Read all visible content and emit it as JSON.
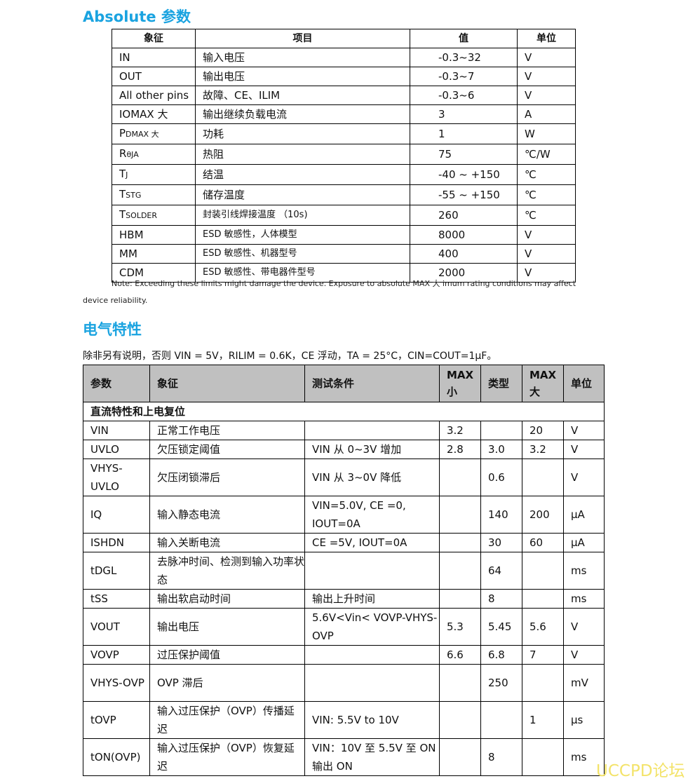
{
  "abs": {
    "title": "Absolute 参数",
    "headers": [
      "象征",
      "项目",
      "值",
      "单位"
    ],
    "rows": [
      {
        "sym": "IN",
        "sub": "",
        "item": "输入电压",
        "val": "-0.3~32",
        "unit": "V"
      },
      {
        "sym": "OUT",
        "sub": "",
        "item": "输出电压",
        "val": "-0.3~7",
        "unit": "V"
      },
      {
        "sym": "All other pins",
        "sub": "",
        "item": "故障、CE、ILIM",
        "val": "-0.3~6",
        "unit": "V"
      },
      {
        "sym": "IOMAX 大",
        "sub": "",
        "item": "输出继续负载电流",
        "val": "3",
        "unit": "A"
      },
      {
        "sym": "P",
        "sub": "DMAX 大",
        "item": "功耗",
        "val": "1",
        "unit": "W"
      },
      {
        "sym": "R",
        "sub": "θJA",
        "item": "热阻",
        "val": "75",
        "unit": "℃/W"
      },
      {
        "sym": "T",
        "sub": "J",
        "item": "结温",
        "val": "-40 ~ +150",
        "unit": "℃"
      },
      {
        "sym": "T",
        "sub": "STG",
        "item": "储存温度",
        "val": "-55 ~ +150",
        "unit": "℃"
      },
      {
        "sym": "T",
        "sub": "SOLDER",
        "item": "封装引线焊接温度 （10s)",
        "val": "260",
        "unit": "℃"
      },
      {
        "sym": "HBM",
        "sub": "",
        "item": "ESD 敏感性，人体模型",
        "val": "8000",
        "unit": "V"
      },
      {
        "sym": "MM",
        "sub": "",
        "item": "ESD  敏感性、机器型号",
        "val": "400",
        "unit": "V"
      },
      {
        "sym": "CDM",
        "sub": "",
        "item": "ESD  敏感性、带电器件型号",
        "val": "2000",
        "unit": "V"
      }
    ],
    "note_line1": "Note: Exceeding these limits might damage the device. Exposure to absolute MAX 大 imum rating conditions may affect",
    "note_line2": "device reliability."
  },
  "elec": {
    "title": "电气特性",
    "conditions": "除非另有说明，否则 VIN = 5V，RILIM = 0.6K，CE 浮动，TA = 25°C，CIN=COUT=1µF。",
    "headers": [
      "参数",
      "象征",
      "测试条件",
      "MAX 小",
      "类型",
      "MAX 大",
      "单位"
    ],
    "section": "直流特性和上电复位",
    "rows": [
      {
        "p": "VIN",
        "s": "正常工作电压",
        "c": "",
        "min": "3.2",
        "typ": "",
        "max": "20",
        "u": "V",
        "tall": false
      },
      {
        "p": "UVLO",
        "s": "欠压锁定阈值",
        "c": "VIN  从  0~3V  增加",
        "min": "2.8",
        "typ": "3.0",
        "max": "3.2",
        "u": "V",
        "tall": false
      },
      {
        "p": "VHYS-UVLO",
        "s": "欠压闭锁滞后",
        "c": "VIN 从 3~0V 降低",
        "min": "",
        "typ": "0.6",
        "max": "",
        "u": "V",
        "tall": true
      },
      {
        "p": "IQ",
        "s": "输入静态电流",
        "c": "VIN=5.0V, CE =0, IOUT=0A",
        "min": "",
        "typ": "140",
        "max": "200",
        "u": "µA",
        "tall": true
      },
      {
        "p": "ISHDN",
        "s": "输入关断电流",
        "c": "CE =5V, IOUT=0A",
        "min": "",
        "typ": "30",
        "max": "60",
        "u": "µA",
        "tall": false
      },
      {
        "p": "tDGL",
        "s": "去脉冲时间、检测到输入功率状态",
        "c": "",
        "min": "",
        "typ": "64",
        "max": "",
        "u": "ms",
        "tall": true
      },
      {
        "p": "tSS",
        "s": "输出软启动时间",
        "c": "输出上升时间",
        "min": "",
        "typ": "8",
        "max": "",
        "u": "ms",
        "tall": false
      },
      {
        "p": "VOUT",
        "s": "输出电压",
        "c": "5.6V<Vin< VOVP-VHYS-OVP",
        "min": "5.3",
        "typ": "5.45",
        "max": "5.6",
        "u": "V",
        "tall": true
      },
      {
        "p": "VOVP",
        "s": "过压保护阈值",
        "c": "",
        "min": "6.6",
        "typ": "6.8",
        "max": "7",
        "u": "V",
        "tall": false
      },
      {
        "p": "VHYS-OVP",
        "s": "OVP 滞后",
        "c": "",
        "min": "",
        "typ": "250",
        "max": "",
        "u": "mV",
        "tall": true
      },
      {
        "p": "tOVP",
        "s": "输入过压保护（OVP）传播延迟",
        "c": "VIN: 5.5V to 10V",
        "min": "",
        "typ": "",
        "max": "1",
        "u": "µs",
        "tall": true
      },
      {
        "p": "tON(OVP)",
        "s": "输入过压保护（OVP）恢复延迟",
        "c": "VIN：10V  至  5.5V  至 ON  输出  ON",
        "min": "",
        "typ": "8",
        "max": "",
        "u": "ms",
        "tall": true
      }
    ]
  },
  "watermark": "UCCPD论坛"
}
